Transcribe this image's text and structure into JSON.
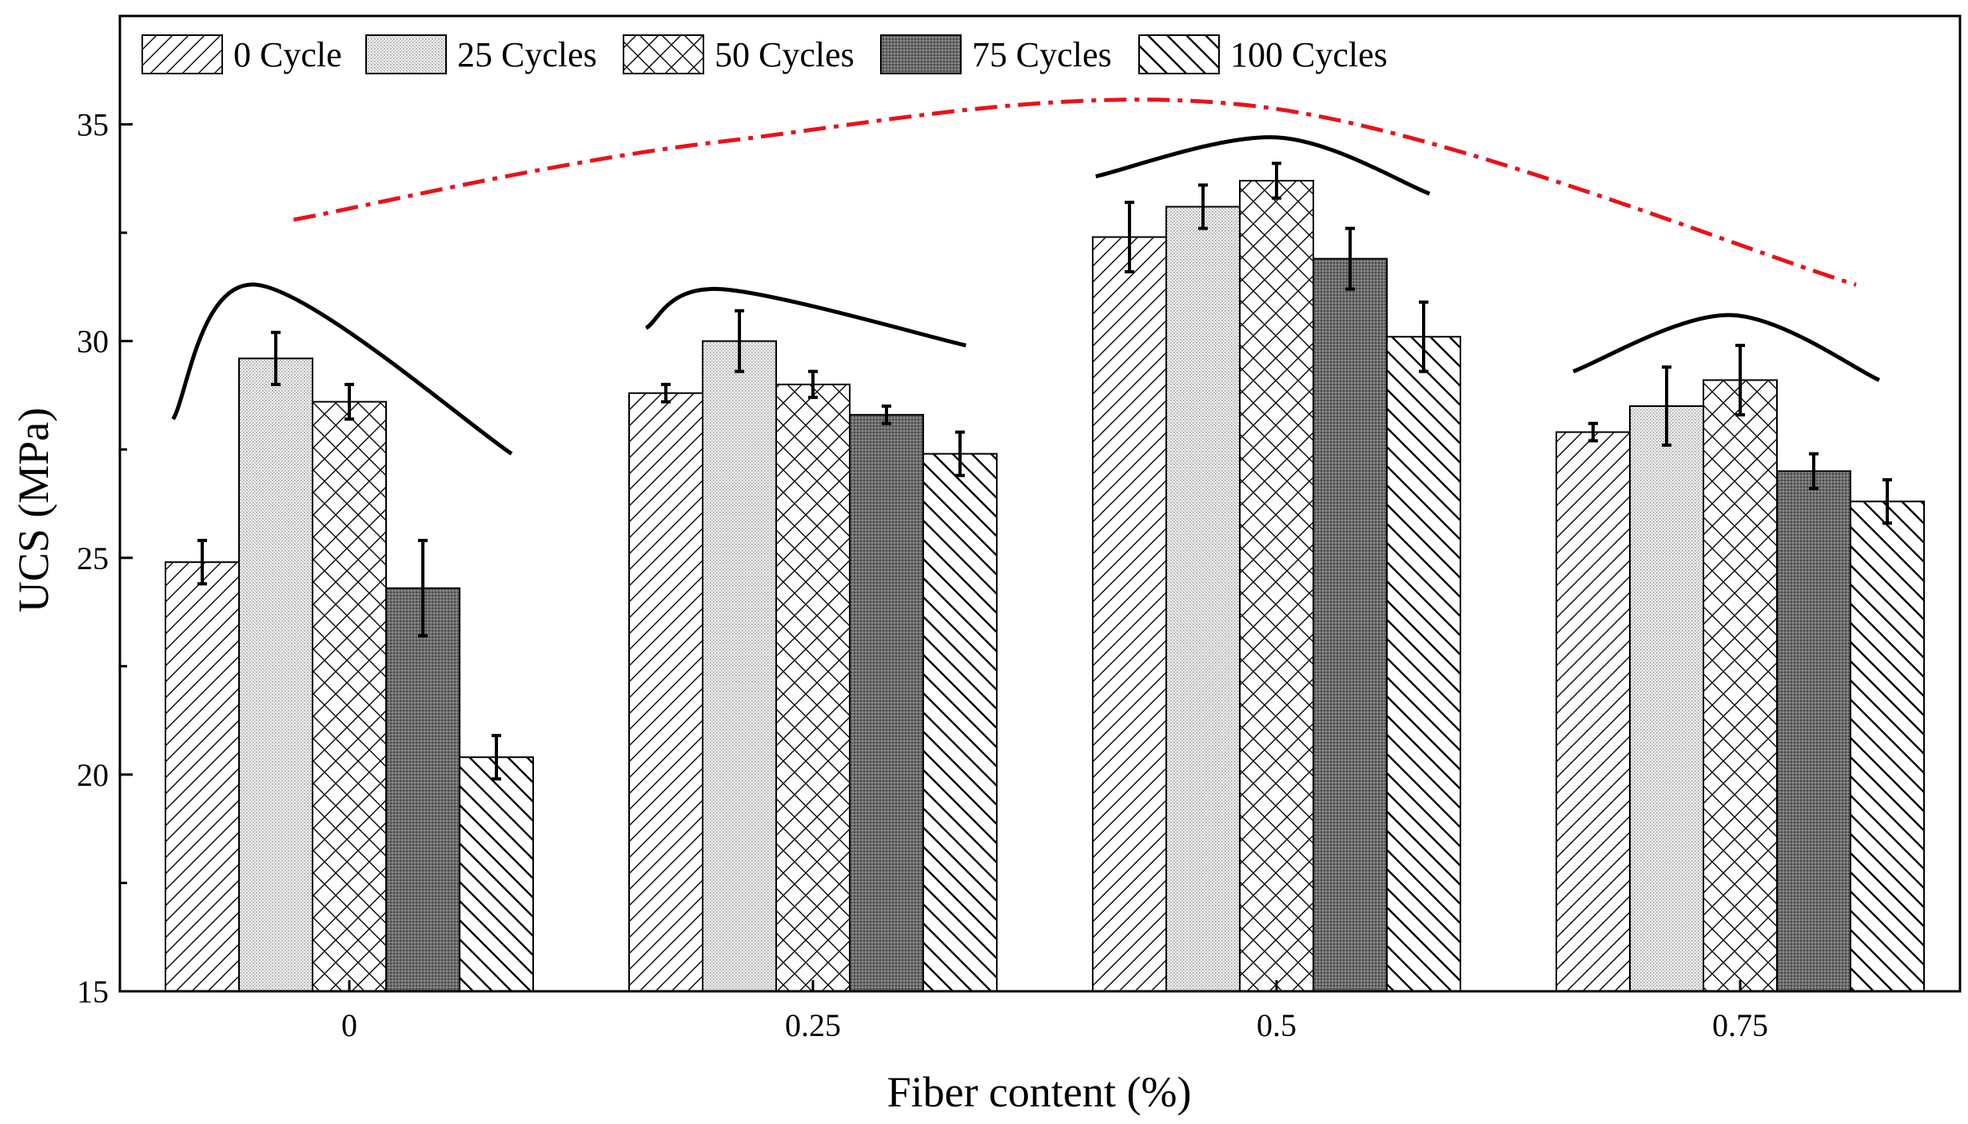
{
  "chart_data": {
    "type": "bar",
    "title": "",
    "xlabel": "Fiber content (%)",
    "ylabel": "UCS (MPa)",
    "categories": [
      "0",
      "0.25",
      "0.5",
      "0.75"
    ],
    "ylim": [
      15,
      37.5
    ],
    "yticks": [
      15,
      20,
      25,
      30,
      35
    ],
    "grid": false,
    "legend_position": "top-left",
    "series": [
      {
        "name": "0 Cycle",
        "pattern": "diagonal-forward",
        "values": [
          24.9,
          28.8,
          32.4,
          27.9
        ],
        "errors": [
          0.5,
          0.2,
          0.8,
          0.2
        ]
      },
      {
        "name": "25 Cycles",
        "pattern": "fine-dots",
        "values": [
          29.6,
          30.0,
          33.1,
          28.5
        ],
        "errors": [
          0.6,
          0.7,
          0.5,
          0.9
        ]
      },
      {
        "name": "50 Cycles",
        "pattern": "crosshatch",
        "values": [
          28.6,
          29.0,
          33.7,
          29.1
        ],
        "errors": [
          0.4,
          0.3,
          0.4,
          0.8
        ]
      },
      {
        "name": "75 Cycles",
        "pattern": "dense-dots-dark",
        "values": [
          24.3,
          28.3,
          31.9,
          27.0
        ],
        "errors": [
          1.1,
          0.2,
          0.7,
          0.4
        ]
      },
      {
        "name": "100 Cycles",
        "pattern": "diagonal-backward",
        "values": [
          20.4,
          27.4,
          30.1,
          26.3
        ],
        "errors": [
          0.5,
          0.5,
          0.8,
          0.5
        ]
      }
    ],
    "trend_curves": [
      {
        "category": "0",
        "color": "#000000",
        "style": "solid",
        "points": [
          [
            -0.38,
            28.2
          ],
          [
            -0.2,
            31.3
          ],
          [
            0.35,
            27.4
          ]
        ]
      },
      {
        "category": "0.25",
        "color": "#000000",
        "style": "solid",
        "points": [
          [
            0.64,
            30.3
          ],
          [
            0.8,
            31.2
          ],
          [
            1.33,
            29.9
          ]
        ]
      },
      {
        "category": "0.5",
        "color": "#000000",
        "style": "solid",
        "points": [
          [
            1.61,
            33.8
          ],
          [
            2.0,
            34.7
          ],
          [
            2.33,
            33.4
          ]
        ]
      },
      {
        "category": "0.75",
        "color": "#000000",
        "style": "solid",
        "points": [
          [
            2.64,
            29.3
          ],
          [
            2.98,
            30.6
          ],
          [
            3.3,
            29.1
          ]
        ]
      }
    ],
    "overall_trend": {
      "color": "#e8121a",
      "style": "dash-dot",
      "points": [
        [
          -0.12,
          32.8
        ],
        [
          0.8,
          34.6
        ],
        [
          1.97,
          35.4
        ],
        [
          3.25,
          31.3
        ]
      ]
    }
  }
}
